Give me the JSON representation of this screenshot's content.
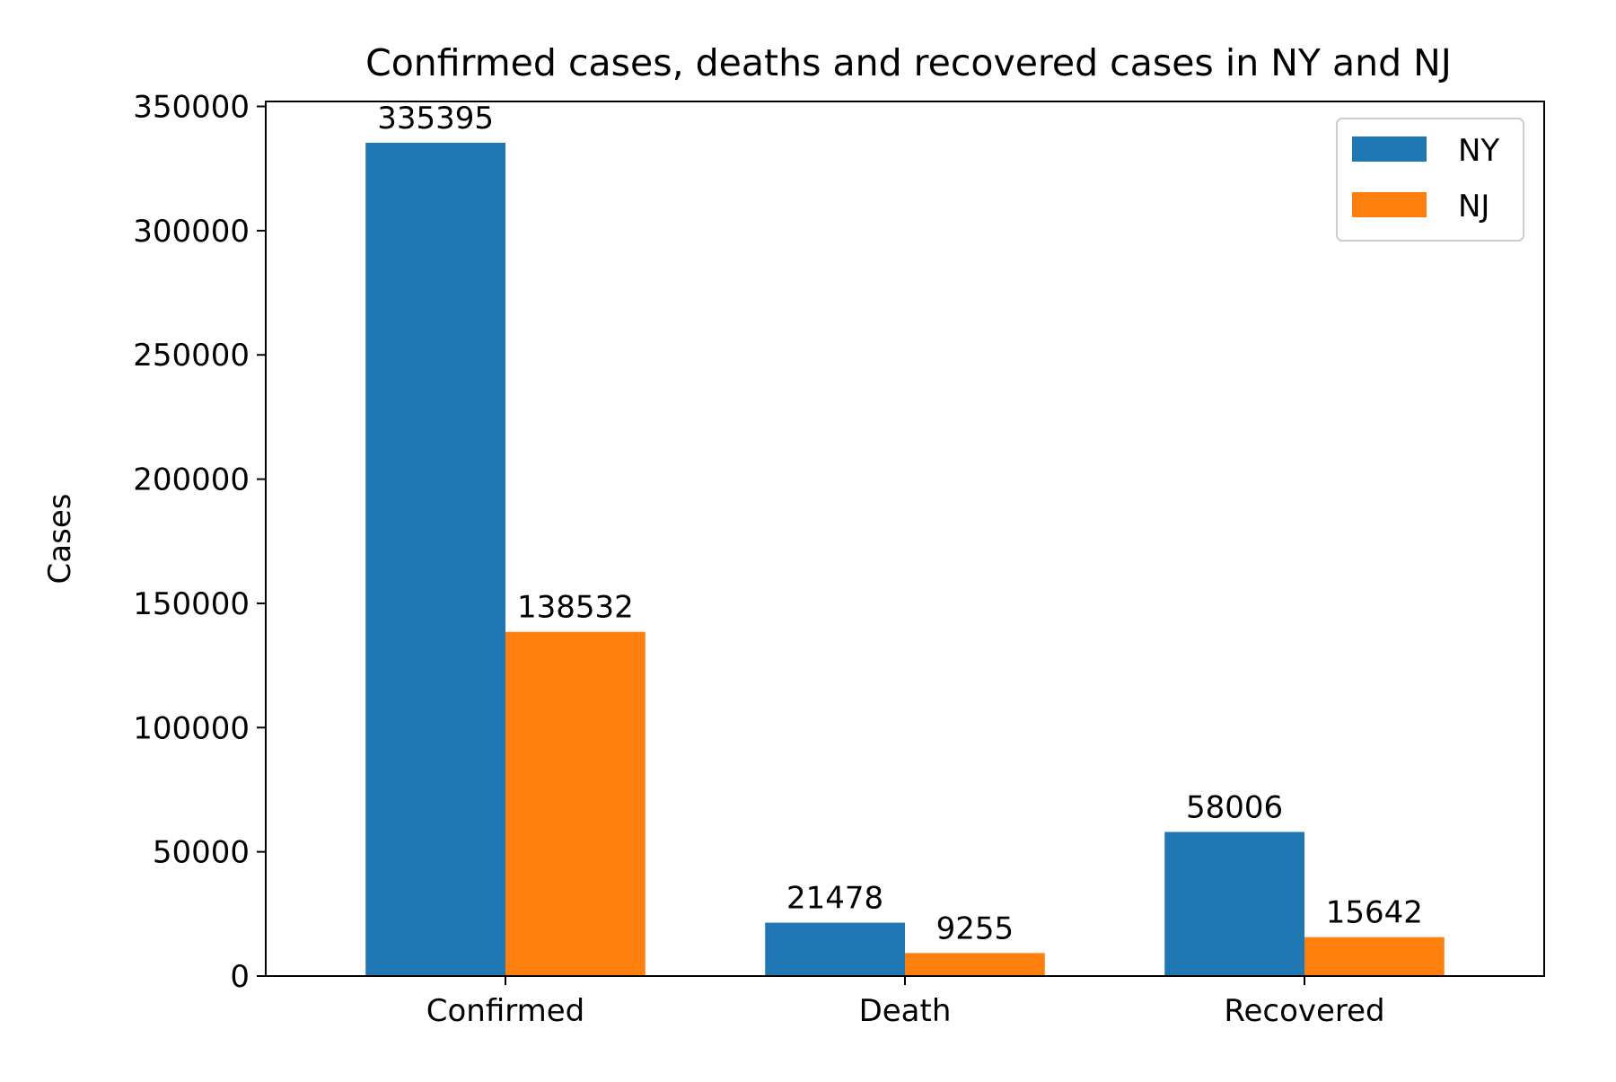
{
  "chart_data": {
    "type": "bar",
    "title": "Confirmed cases, deaths and recovered cases in NY and NJ",
    "xlabel": "",
    "ylabel": "Cases",
    "categories": [
      "Confirmed",
      "Death",
      "Recovered"
    ],
    "series": [
      {
        "name": "NY",
        "color": "#1f77b4",
        "values": [
          335395,
          21478,
          58006
        ]
      },
      {
        "name": "NJ",
        "color": "#ff7f0e",
        "values": [
          138532,
          9255,
          15642
        ]
      }
    ],
    "ylim": [
      0,
      352000
    ],
    "yticks": [
      0,
      50000,
      100000,
      150000,
      200000,
      250000,
      300000,
      350000
    ],
    "ytick_labels": [
      "0",
      "50000",
      "100000",
      "150000",
      "200000",
      "250000",
      "300000",
      "350000"
    ],
    "data_labels": true,
    "legend_position": "top-right",
    "grid": false
  }
}
